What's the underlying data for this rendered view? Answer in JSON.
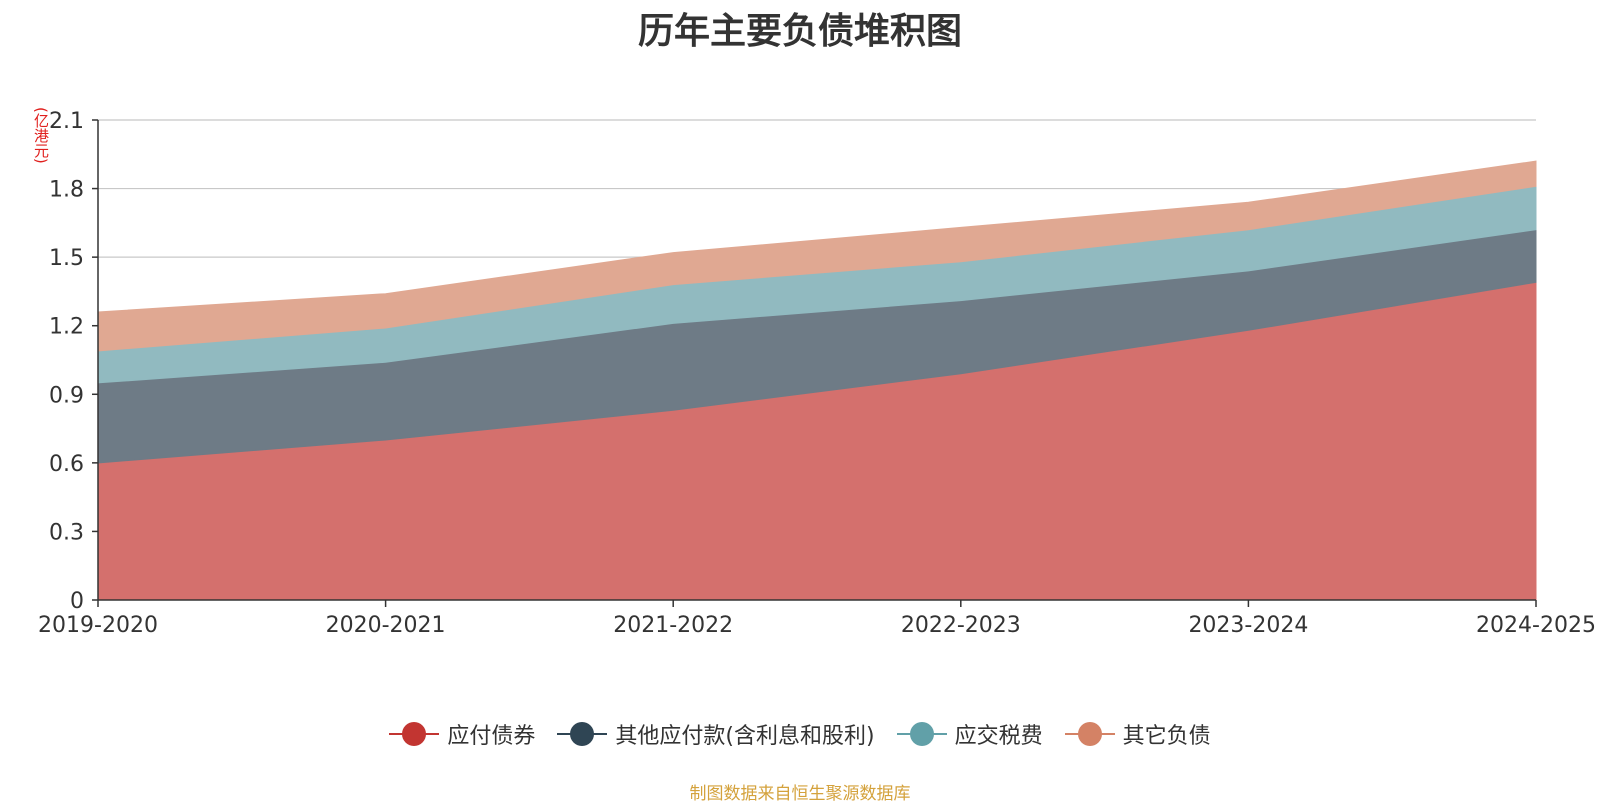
{
  "title": "历年主要负债堆积图",
  "unit_label": "(亿港元)",
  "source": "制图数据来自恒生聚源数据库",
  "chart_data": {
    "type": "area",
    "stacked": true,
    "categories": [
      "2019-2020",
      "2020-2021",
      "2021-2022",
      "2022-2023",
      "2023-2024",
      "2024-2025"
    ],
    "ylim": [
      0,
      2.1
    ],
    "yticks": [
      0,
      0.3,
      0.6,
      0.9,
      1.2,
      1.5,
      1.8,
      2.1
    ],
    "ytick_labels": [
      "0",
      "0.3",
      "0.6",
      "0.9",
      "1.2",
      "1.5",
      "1.8",
      "2.1"
    ],
    "grid": true,
    "legend_position": "bottom",
    "series": [
      {
        "name": "应付债券",
        "values": [
          0.6,
          0.7,
          0.83,
          0.99,
          1.18,
          1.39
        ],
        "color": "#c23531",
        "fill": "#d4706d"
      },
      {
        "name": "其他应付款(含利息和股利)",
        "values": [
          0.35,
          0.34,
          0.38,
          0.32,
          0.26,
          0.23
        ],
        "color": "#2f4554",
        "fill": "#6e7b86"
      },
      {
        "name": "应交税费",
        "values": [
          0.14,
          0.15,
          0.17,
          0.17,
          0.18,
          0.19
        ],
        "color": "#61a0a8",
        "fill": "#91bac0"
      },
      {
        "name": "其它负债",
        "values": [
          0.17,
          0.15,
          0.14,
          0.15,
          0.12,
          0.11
        ],
        "color": "#d48265",
        "fill": "#e0a892"
      }
    ]
  }
}
